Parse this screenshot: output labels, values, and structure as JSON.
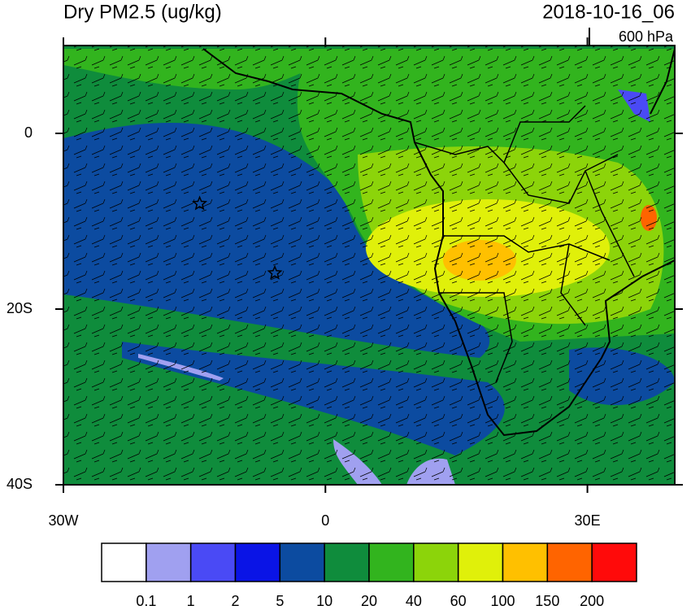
{
  "title": "Dry PM2.5 (ug/kg)",
  "valid_time": "2018-10-16_06",
  "level": "600 hPa",
  "map": {
    "lon_range": [
      -30,
      40
    ],
    "lat_range": [
      -40,
      10
    ],
    "lon_ticks": [
      {
        "value": -30,
        "label": "30W"
      },
      {
        "value": 0,
        "label": "0"
      },
      {
        "value": 30,
        "label": "30E"
      }
    ],
    "lat_ticks": [
      {
        "value": 0,
        "label": "0"
      },
      {
        "value": -20,
        "label": "20S"
      },
      {
        "value": -40,
        "label": "40S"
      }
    ],
    "markers": [
      {
        "lon": -14.4,
        "lat": -8.0
      },
      {
        "lon": -5.8,
        "lat": -15.9
      }
    ]
  },
  "colorbar": {
    "levels": [
      0.1,
      1,
      2,
      5,
      10,
      20,
      40,
      60,
      100,
      150,
      200
    ],
    "colors": [
      "#ffffff",
      "#a0a0f0",
      "#4a4af5",
      "#0a14e6",
      "#0c4ba0",
      "#0f8c3c",
      "#32b41e",
      "#8cd40a",
      "#e0f00a",
      "#ffc000",
      "#ff6400",
      "#ff0a0a"
    ]
  }
}
